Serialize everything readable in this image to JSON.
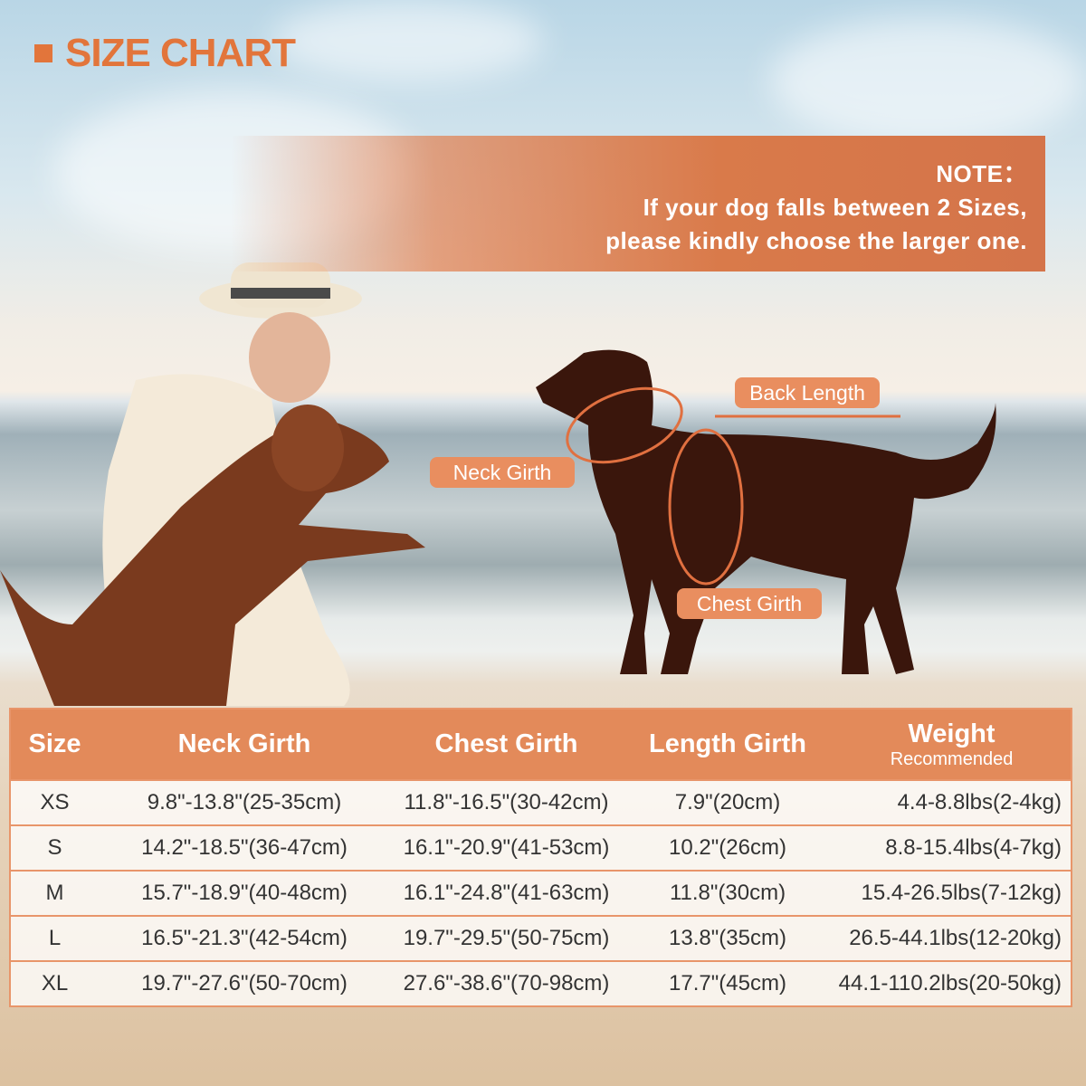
{
  "title": "SIZE CHART",
  "note": {
    "heading": "NOTE：",
    "line1": "If your dog falls between 2 Sizes,",
    "line2": "please kindly choose the larger one."
  },
  "diagram_labels": {
    "back_length": "Back Length",
    "neck_girth": "Neck Girth",
    "chest_girth": "Chest Girth"
  },
  "colors": {
    "accent": "#e2753b",
    "table_header": "#e38a5a"
  },
  "table": {
    "headers": [
      "Size",
      "Neck Girth",
      "Chest Girth",
      "Length Girth",
      "Weight"
    ],
    "weight_sub": "Recommended",
    "rows": [
      [
        "XS",
        "9.8\"-13.8\"(25-35cm)",
        "11.8\"-16.5\"(30-42cm)",
        "7.9\"(20cm)",
        "4.4-8.8lbs(2-4kg)"
      ],
      [
        "S",
        "14.2\"-18.5\"(36-47cm)",
        "16.1\"-20.9\"(41-53cm)",
        "10.2\"(26cm)",
        "8.8-15.4lbs(4-7kg)"
      ],
      [
        "M",
        "15.7\"-18.9\"(40-48cm)",
        "16.1\"-24.8\"(41-63cm)",
        "11.8\"(30cm)",
        "15.4-26.5lbs(7-12kg)"
      ],
      [
        "L",
        "16.5\"-21.3\"(42-54cm)",
        "19.7\"-29.5\"(50-75cm)",
        "13.8\"(35cm)",
        "26.5-44.1lbs(12-20kg)"
      ],
      [
        "XL",
        "19.7\"-27.6\"(50-70cm)",
        "27.6\"-38.6\"(70-98cm)",
        "17.7\"(45cm)",
        "44.1-110.2lbs(20-50kg)"
      ]
    ]
  }
}
